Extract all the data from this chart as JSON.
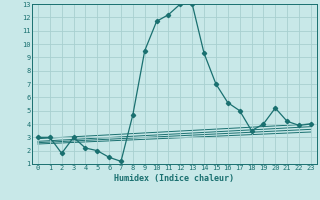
{
  "xlabel": "Humidex (Indice chaleur)",
  "ylabel": "",
  "background_color": "#c8e8e8",
  "grid_color": "#a8d0d0",
  "line_color": "#1a7070",
  "xlim": [
    -0.5,
    23.5
  ],
  "ylim": [
    1,
    13
  ],
  "xticks": [
    0,
    1,
    2,
    3,
    4,
    5,
    6,
    7,
    8,
    9,
    10,
    11,
    12,
    13,
    14,
    15,
    16,
    17,
    18,
    19,
    20,
    21,
    22,
    23
  ],
  "yticks": [
    1,
    2,
    3,
    4,
    5,
    6,
    7,
    8,
    9,
    10,
    11,
    12,
    13
  ],
  "series": [
    {
      "x": [
        0,
        1,
        2,
        3,
        4,
        5,
        6,
        7,
        8,
        9,
        10,
        11,
        12,
        13,
        14,
        15,
        16,
        17,
        18,
        19,
        20,
        21,
        22,
        23
      ],
      "y": [
        3.0,
        3.0,
        1.8,
        3.0,
        2.2,
        2.0,
        1.5,
        1.2,
        4.7,
        9.5,
        11.7,
        12.2,
        13.0,
        13.0,
        9.3,
        7.0,
        5.6,
        5.0,
        3.5,
        4.0,
        5.2,
        4.2,
        3.9,
        4.0
      ]
    },
    {
      "x": [
        0,
        23
      ],
      "y": [
        2.9,
        4.0
      ]
    },
    {
      "x": [
        0,
        23
      ],
      "y": [
        2.7,
        3.8
      ]
    },
    {
      "x": [
        0,
        23
      ],
      "y": [
        2.6,
        3.6
      ]
    },
    {
      "x": [
        0,
        23
      ],
      "y": [
        2.5,
        3.4
      ]
    }
  ]
}
